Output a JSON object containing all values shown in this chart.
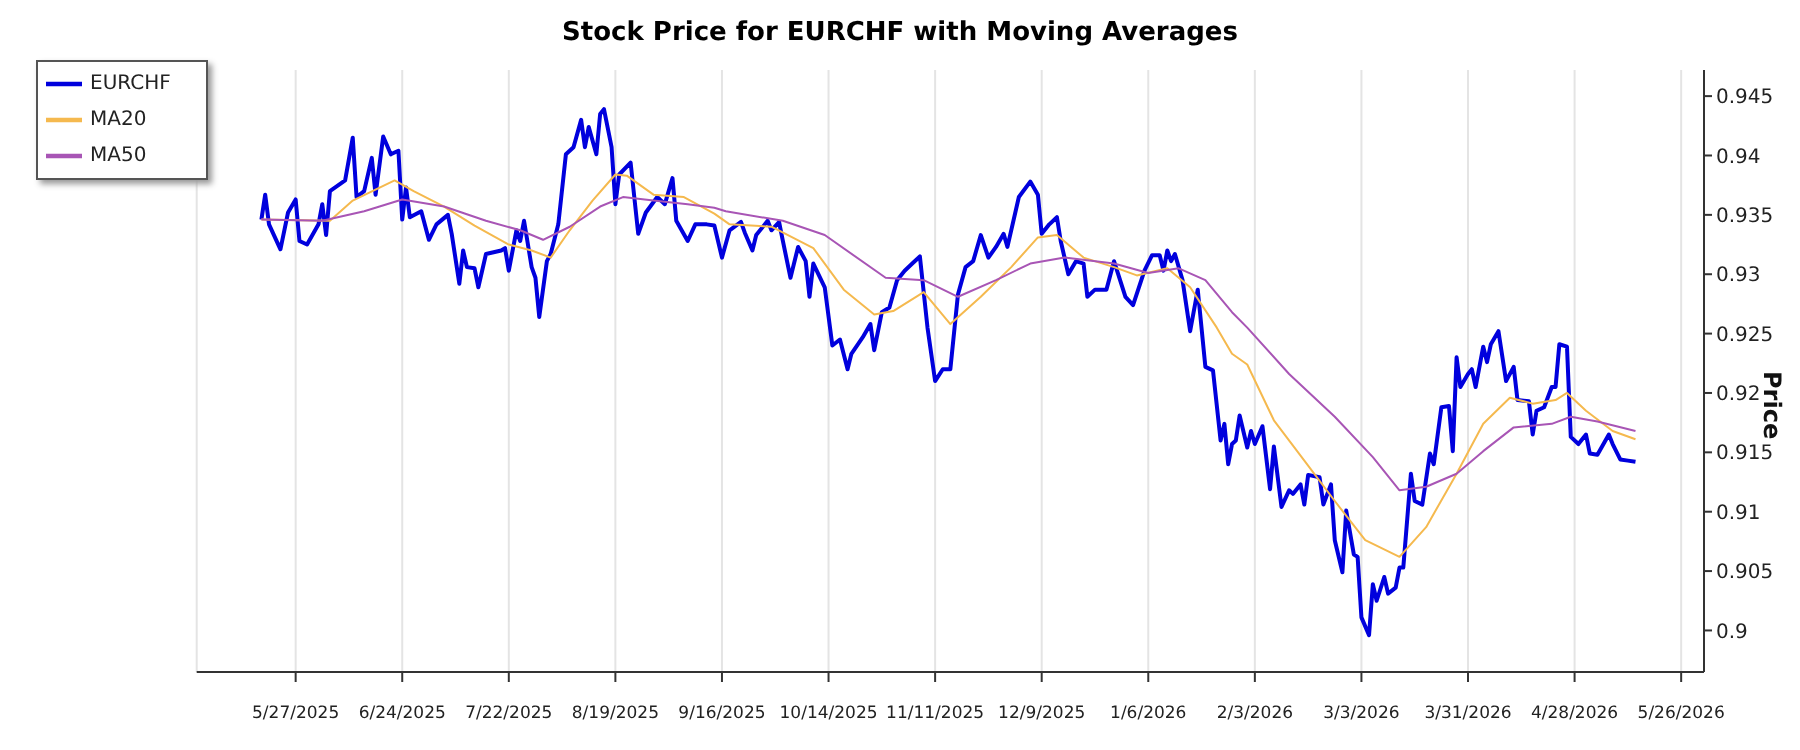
{
  "chart_data": {
    "type": "line",
    "title": "Stock Price for EURCHF with Moving Averages",
    "ylabel": "Price",
    "xlim": [
      "2025-05-01",
      "2026-06-01"
    ],
    "xticks": [
      {
        "value": "2025-05-27",
        "label": "5/27/2025"
      },
      {
        "value": "2025-06-24",
        "label": "6/24/2025"
      },
      {
        "value": "2025-07-22",
        "label": "7/22/2025"
      },
      {
        "value": "2025-08-19",
        "label": "8/19/2025"
      },
      {
        "value": "2025-09-16",
        "label": "9/16/2025"
      },
      {
        "value": "2025-10-14",
        "label": "10/14/2025"
      },
      {
        "value": "2025-11-11",
        "label": "11/11/2025"
      },
      {
        "value": "2025-12-09",
        "label": "12/9/2025"
      },
      {
        "value": "2026-01-06",
        "label": "1/6/2026"
      },
      {
        "value": "2026-02-03",
        "label": "2/3/2026"
      },
      {
        "value": "2026-03-03",
        "label": "3/3/2026"
      },
      {
        "value": "2026-03-31",
        "label": "3/31/2026"
      },
      {
        "value": "2026-04-28",
        "label": "4/28/2026"
      },
      {
        "value": "2026-05-26",
        "label": "5/26/2026"
      }
    ],
    "ylim": [
      0.8965,
      0.9472
    ],
    "yticks": [
      0.9,
      0.905,
      0.91,
      0.915,
      0.92,
      0.925,
      0.93,
      0.935,
      0.94,
      0.945
    ],
    "grid": "x",
    "legend": "top left",
    "series": [
      {
        "name": "EURCHF",
        "color": "#0000dd",
        "x": [
          "2025-05-18",
          "2025-05-19",
          "2025-05-20",
          "2025-05-23",
          "2025-05-25",
          "2025-05-27",
          "2025-05-28",
          "2025-05-30",
          "2025-06-02",
          "2025-06-03",
          "2025-06-04",
          "2025-06-05",
          "2025-06-09",
          "2025-06-11",
          "2025-06-12",
          "2025-06-14",
          "2025-06-16",
          "2025-06-17",
          "2025-06-19",
          "2025-06-21",
          "2025-06-23",
          "2025-06-24",
          "2025-06-25",
          "2025-06-26",
          "2025-06-29",
          "2025-07-01",
          "2025-07-03",
          "2025-07-06",
          "2025-07-07",
          "2025-07-09",
          "2025-07-10",
          "2025-07-11",
          "2025-07-13",
          "2025-07-14",
          "2025-07-16",
          "2025-07-20",
          "2025-07-21",
          "2025-07-22",
          "2025-07-24",
          "2025-07-25",
          "2025-07-26",
          "2025-07-28",
          "2025-07-29",
          "2025-07-30",
          "2025-08-01",
          "2025-08-02",
          "2025-08-04",
          "2025-08-06",
          "2025-08-08",
          "2025-08-10",
          "2025-08-11",
          "2025-08-12",
          "2025-08-14",
          "2025-08-15",
          "2025-08-16",
          "2025-08-18",
          "2025-08-19",
          "2025-08-20",
          "2025-08-23",
          "2025-08-25",
          "2025-08-27",
          "2025-08-30",
          "2025-09-01",
          "2025-09-03",
          "2025-09-04",
          "2025-09-07",
          "2025-09-09",
          "2025-09-12",
          "2025-09-14",
          "2025-09-16",
          "2025-09-18",
          "2025-09-21",
          "2025-09-22",
          "2025-09-24",
          "2025-09-25",
          "2025-09-28",
          "2025-09-29",
          "2025-10-01",
          "2025-10-02",
          "2025-10-04",
          "2025-10-06",
          "2025-10-08",
          "2025-10-09",
          "2025-10-10",
          "2025-10-13",
          "2025-10-15",
          "2025-10-17",
          "2025-10-19",
          "2025-10-20",
          "2025-10-23",
          "2025-10-25",
          "2025-10-26",
          "2025-10-28",
          "2025-10-30",
          "2025-11-01",
          "2025-11-03",
          "2025-11-05",
          "2025-11-07",
          "2025-11-09",
          "2025-11-11",
          "2025-11-13",
          "2025-11-15",
          "2025-11-17",
          "2025-11-19",
          "2025-11-21",
          "2025-11-23",
          "2025-11-25",
          "2025-11-27",
          "2025-11-29",
          "2025-11-30",
          "2025-12-03",
          "2025-12-06",
          "2025-12-08",
          "2025-12-09",
          "2025-12-11",
          "2025-12-13",
          "2025-12-14",
          "2025-12-16",
          "2025-12-18",
          "2025-12-20",
          "2025-12-21",
          "2025-12-23",
          "2025-12-26",
          "2025-12-28",
          "2025-12-31",
          "2026-01-02",
          "2026-01-05",
          "2026-01-07",
          "2026-01-09",
          "2026-01-10",
          "2026-01-11",
          "2026-01-12",
          "2026-01-13",
          "2026-01-15",
          "2026-01-17",
          "2026-01-19",
          "2026-01-21",
          "2026-01-23",
          "2026-01-25",
          "2026-01-26",
          "2026-01-27",
          "2026-01-28",
          "2026-01-29",
          "2026-01-30",
          "2026-02-01",
          "2026-02-02",
          "2026-02-03",
          "2026-02-05",
          "2026-02-07",
          "2026-02-08",
          "2026-02-10",
          "2026-02-12",
          "2026-02-13",
          "2026-02-15",
          "2026-02-16",
          "2026-02-17",
          "2026-02-20",
          "2026-02-21",
          "2026-02-23",
          "2026-02-24",
          "2026-02-26",
          "2026-02-27",
          "2026-03-01",
          "2026-03-02",
          "2026-03-03",
          "2026-03-05",
          "2026-03-06",
          "2026-03-07",
          "2026-03-09",
          "2026-03-10",
          "2026-03-12",
          "2026-03-13",
          "2026-03-14",
          "2026-03-16",
          "2026-03-17",
          "2026-03-19",
          "2026-03-21",
          "2026-03-22",
          "2026-03-24",
          "2026-03-26",
          "2026-03-27",
          "2026-03-28",
          "2026-03-29",
          "2026-03-31",
          "2026-04-01",
          "2026-04-02",
          "2026-04-04",
          "2026-04-05",
          "2026-04-06",
          "2026-04-08",
          "2026-04-10",
          "2026-04-12",
          "2026-04-13",
          "2026-04-16",
          "2026-04-17",
          "2026-04-18",
          "2026-04-20",
          "2026-04-22",
          "2026-04-23",
          "2026-04-24",
          "2026-04-26",
          "2026-04-27",
          "2026-04-29",
          "2026-05-01",
          "2026-05-02",
          "2026-05-04",
          "2026-05-07",
          "2026-05-08",
          "2026-05-10",
          "2026-05-12",
          "2026-05-14"
        ],
        "values": [
          0.9346,
          0.9367,
          0.9342,
          0.9321,
          0.9352,
          0.9363,
          0.9328,
          0.9325,
          0.9342,
          0.9359,
          0.9333,
          0.937,
          0.9379,
          0.9415,
          0.9365,
          0.937,
          0.9398,
          0.9367,
          0.9416,
          0.9401,
          0.9404,
          0.9346,
          0.9373,
          0.9348,
          0.9353,
          0.9329,
          0.9342,
          0.935,
          0.9334,
          0.9292,
          0.932,
          0.9306,
          0.9305,
          0.9289,
          0.9317,
          0.932,
          0.9322,
          0.9303,
          0.9337,
          0.9328,
          0.9345,
          0.9306,
          0.9297,
          0.9264,
          0.9311,
          0.9317,
          0.9342,
          0.9401,
          0.9407,
          0.943,
          0.9407,
          0.9424,
          0.9401,
          0.9435,
          0.9439,
          0.9407,
          0.9359,
          0.9384,
          0.9394,
          0.9334,
          0.9352,
          0.9365,
          0.9359,
          0.9381,
          0.9345,
          0.9328,
          0.9342,
          0.9342,
          0.9341,
          0.9314,
          0.9337,
          0.9344,
          0.9335,
          0.932,
          0.9333,
          0.9345,
          0.9337,
          0.9344,
          0.9328,
          0.9297,
          0.9323,
          0.9311,
          0.9281,
          0.9309,
          0.9289,
          0.924,
          0.9245,
          0.922,
          0.9233,
          0.9247,
          0.9258,
          0.9236,
          0.9268,
          0.9272,
          0.9295,
          0.9303,
          0.9309,
          0.9315,
          0.9255,
          0.921,
          0.922,
          0.922,
          0.9283,
          0.9306,
          0.9311,
          0.9333,
          0.9314,
          0.9323,
          0.9334,
          0.9323,
          0.9365,
          0.9378,
          0.9367,
          0.9334,
          0.9342,
          0.9348,
          0.9328,
          0.93,
          0.9311,
          0.9309,
          0.9281,
          0.9287,
          0.9287,
          0.9311,
          0.9281,
          0.9274,
          0.9303,
          0.9316,
          0.9316,
          0.9303,
          0.932,
          0.9311,
          0.9317,
          0.9295,
          0.9252,
          0.9287,
          0.9222,
          0.9219,
          0.916,
          0.9174,
          0.914,
          0.9157,
          0.916,
          0.9181,
          0.9154,
          0.9168,
          0.9157,
          0.9172,
          0.9119,
          0.9155,
          0.9104,
          0.9118,
          0.9115,
          0.9123,
          0.9106,
          0.9131,
          0.9129,
          0.9106,
          0.9123,
          0.9076,
          0.9049,
          0.9101,
          0.9064,
          0.9062,
          0.9011,
          0.8996,
          0.9039,
          0.9025,
          0.9045,
          0.9031,
          0.9036,
          0.9053,
          0.9053,
          0.9132,
          0.9109,
          0.9106,
          0.9149,
          0.914,
          0.9188,
          0.9189,
          0.9151,
          0.923,
          0.9205,
          0.9216,
          0.922,
          0.9205,
          0.9239,
          0.9226,
          0.9241,
          0.9252,
          0.921,
          0.9222,
          0.9194,
          0.9193,
          0.9165,
          0.9185,
          0.9188,
          0.9205,
          0.9205,
          0.9241,
          0.9239,
          0.9163,
          0.9157,
          0.9165,
          0.9149,
          0.9148,
          0.9165,
          0.9157,
          0.9144,
          0.9143,
          0.9142
        ]
      },
      {
        "name": "MA20",
        "color": "#f5b94e",
        "x": [
          "2025-05-18",
          "2025-06-05",
          "2025-06-11",
          "2025-06-22",
          "2025-06-27",
          "2025-07-05",
          "2025-07-13",
          "2025-07-22",
          "2025-07-28",
          "2025-08-02",
          "2025-08-07",
          "2025-08-13",
          "2025-08-19",
          "2025-08-22",
          "2025-08-29",
          "2025-09-06",
          "2025-09-14",
          "2025-09-18",
          "2025-09-29",
          "2025-10-10",
          "2025-10-18",
          "2025-10-26",
          "2025-10-31",
          "2025-11-08",
          "2025-11-15",
          "2025-11-23",
          "2025-12-01",
          "2025-12-08",
          "2025-12-13",
          "2025-12-20",
          "2025-12-28",
          "2026-01-03",
          "2026-01-11",
          "2026-01-17",
          "2026-01-24",
          "2026-01-28",
          "2026-02-01",
          "2026-02-08",
          "2026-02-16",
          "2026-02-24",
          "2026-03-04",
          "2026-03-13",
          "2026-03-20",
          "2026-03-28",
          "2026-04-04",
          "2026-04-11",
          "2026-04-17",
          "2026-04-23",
          "2026-04-26",
          "2026-05-01",
          "2026-05-08",
          "2026-05-14"
        ],
        "values": [
          0.9346,
          0.9345,
          0.9362,
          0.9379,
          0.937,
          0.9357,
          0.9341,
          0.9325,
          0.932,
          0.9314,
          0.9337,
          0.9362,
          0.9384,
          0.9383,
          0.9367,
          0.9365,
          0.9351,
          0.9342,
          0.934,
          0.9322,
          0.9287,
          0.9266,
          0.9269,
          0.9285,
          0.9258,
          0.9281,
          0.9306,
          0.9331,
          0.9333,
          0.9314,
          0.9306,
          0.9299,
          0.9305,
          0.9289,
          0.9255,
          0.9233,
          0.9224,
          0.9177,
          0.9143,
          0.9109,
          0.9076,
          0.9062,
          0.9087,
          0.9132,
          0.9174,
          0.9196,
          0.9191,
          0.9194,
          0.92,
          0.9185,
          0.9168,
          0.9161
        ]
      },
      {
        "name": "MA50",
        "color": "#a855b5",
        "x": [
          "2025-05-18",
          "2025-06-03",
          "2025-06-14",
          "2025-06-24",
          "2025-07-05",
          "2025-07-16",
          "2025-07-25",
          "2025-07-31",
          "2025-08-07",
          "2025-08-15",
          "2025-08-21",
          "2025-08-29",
          "2025-09-07",
          "2025-09-14",
          "2025-09-17",
          "2025-10-02",
          "2025-10-13",
          "2025-10-29",
          "2025-11-08",
          "2025-11-17",
          "2025-11-27",
          "2025-12-06",
          "2025-12-15",
          "2025-12-28",
          "2026-01-06",
          "2026-01-14",
          "2026-01-21",
          "2026-01-28",
          "2026-02-01",
          "2026-02-12",
          "2026-02-24",
          "2026-03-06",
          "2026-03-13",
          "2026-03-20",
          "2026-03-28",
          "2026-04-04",
          "2026-04-12",
          "2026-04-22",
          "2026-04-27",
          "2026-05-04",
          "2026-05-14"
        ],
        "values": [
          0.9346,
          0.9345,
          0.9353,
          0.9363,
          0.9357,
          0.9345,
          0.9337,
          0.9329,
          0.934,
          0.9357,
          0.9365,
          0.9362,
          0.9359,
          0.9356,
          0.9353,
          0.9345,
          0.9333,
          0.9297,
          0.9295,
          0.9281,
          0.9295,
          0.9309,
          0.9314,
          0.9309,
          0.9301,
          0.9305,
          0.9295,
          0.9268,
          0.9255,
          0.9216,
          0.918,
          0.9146,
          0.9118,
          0.9121,
          0.9132,
          0.9151,
          0.9171,
          0.9174,
          0.918,
          0.9176,
          0.9168
        ]
      }
    ]
  }
}
